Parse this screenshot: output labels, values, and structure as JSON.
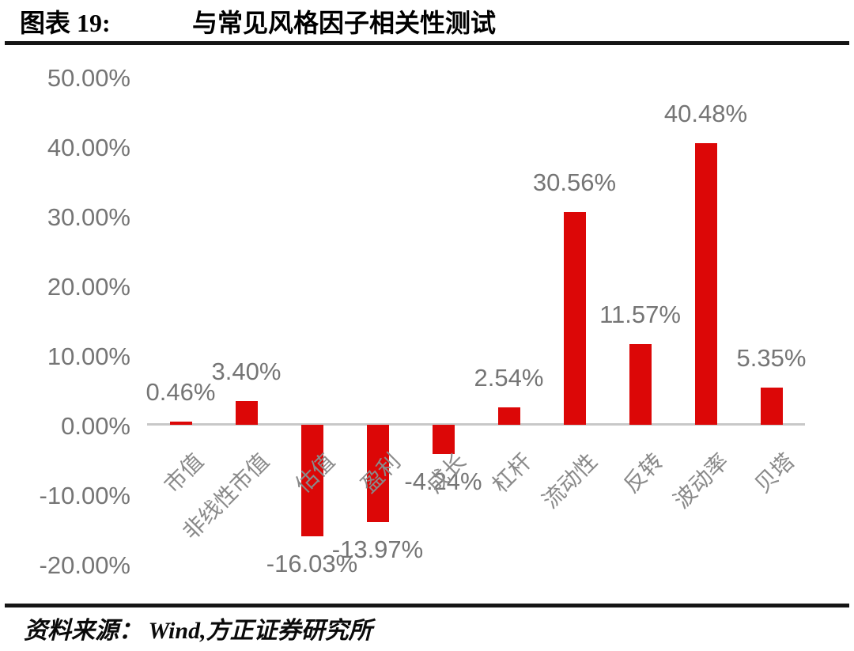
{
  "header": {
    "figure_label": "图表 19:",
    "title": "与常见风格因子相关性测试"
  },
  "footer": {
    "source": "资料来源： Wind,方正证券研究所"
  },
  "chart_data": {
    "type": "bar",
    "title": "与常见风格因子相关性测试",
    "categories": [
      "市值",
      "非线性市值",
      "估值",
      "盈利",
      "成长",
      "杠杆",
      "流动性",
      "反转",
      "波动率",
      "贝塔"
    ],
    "values": [
      0.46,
      3.4,
      -16.03,
      -13.97,
      -4.24,
      2.54,
      30.56,
      11.57,
      40.48,
      5.35
    ],
    "value_labels": [
      "0.46%",
      "3.40%",
      "-16.03%",
      "-13.97%",
      "-4.24%",
      "2.54%",
      "30.56%",
      "11.57%",
      "40.48%",
      "5.35%"
    ],
    "y_axis": {
      "tick_labels": [
        "50.00%",
        "40.00%",
        "30.00%",
        "20.00%",
        "10.00%",
        "0.00%",
        "-10.00%",
        "-20.00%"
      ],
      "tick_values": [
        50,
        40,
        30,
        20,
        10,
        0,
        -10,
        -20
      ],
      "range": [
        -20,
        50
      ]
    },
    "grid": false,
    "legend": false,
    "bar_color": "#DC0707",
    "value_label_color": "#757575",
    "tick_label_color": "#757575",
    "category_label_color": "#8A8A8A",
    "axis_line_color": "#C8C8C8"
  }
}
